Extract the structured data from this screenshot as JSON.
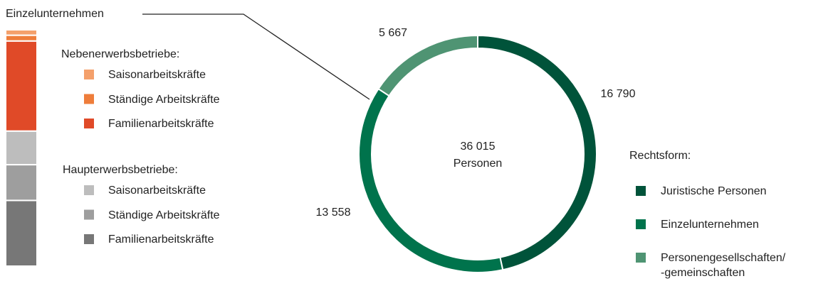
{
  "chart_data": [
    {
      "type": "donut",
      "categories": [
        "Juristische Personen",
        "Einzelunternehmen",
        "Personengesellschaften/\n-gemeinschaften"
      ],
      "values": [
        16790,
        13558,
        5667
      ],
      "value_labels": [
        "16 790",
        "13 558",
        "5 667"
      ],
      "colors": [
        "#00533a",
        "#00734c",
        "#4f9473"
      ],
      "center_label": [
        "36 015",
        "Personen"
      ],
      "legend_title": "Rechtsform:"
    },
    {
      "type": "stacked_bar",
      "annotation": "Einzelunternehmen",
      "groups": [
        "Nebenerwerbsbetriebe:",
        "Haupterwerbsbetriebe:"
      ],
      "series": [
        {
          "name": "Saisonarbeitskräfte",
          "group": 0,
          "color": "#f4a06b",
          "values": [
            310
          ]
        },
        {
          "name": "Ständige Arbeitskräfte",
          "group": 0,
          "color": "#ee7d3b",
          "values": [
            330
          ]
        },
        {
          "name": "Familienarbeitskräfte",
          "group": 0,
          "color": "#e04a28",
          "values": [
            5168
          ]
        },
        {
          "name": "Saisonarbeitskräfte",
          "group": 1,
          "color": "#bdbdbd",
          "values": [
            1930
          ]
        },
        {
          "name": "Ständige Arbeitskräfte",
          "group": 1,
          "color": "#9e9e9e",
          "values": [
            2050
          ]
        },
        {
          "name": "Familienarbeitskräfte",
          "group": 1,
          "color": "#777777",
          "values": [
            3770
          ]
        }
      ]
    }
  ]
}
